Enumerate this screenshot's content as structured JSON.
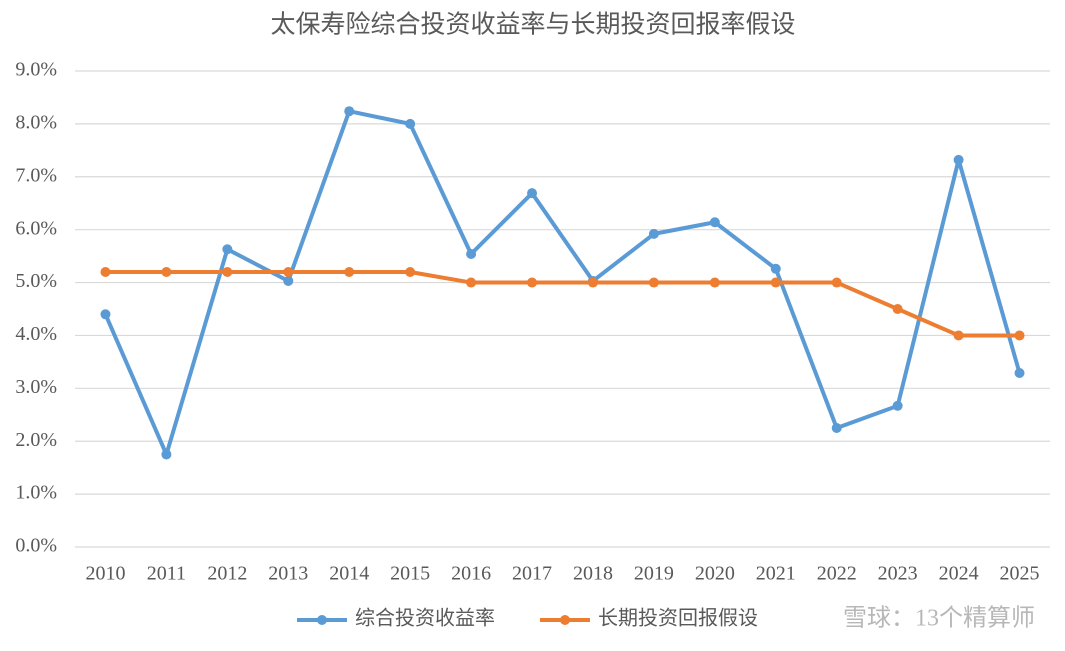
{
  "chart_data": {
    "type": "line",
    "title": "太保寿险综合投资收益率与长期投资回报率假设",
    "categories": [
      "2010",
      "2011",
      "2012",
      "2013",
      "2014",
      "2015",
      "2016",
      "2017",
      "2018",
      "2019",
      "2020",
      "2021",
      "2022",
      "2023",
      "2024",
      "2025"
    ],
    "series": [
      {
        "name": "综合投资收益率",
        "color": "#5b9bd5",
        "values": [
          4.4,
          1.75,
          5.63,
          5.03,
          8.24,
          8.0,
          5.54,
          6.69,
          5.03,
          5.92,
          6.14,
          5.26,
          2.25,
          2.67,
          7.32,
          3.29
        ]
      },
      {
        "name": "长期投资回报假设",
        "color": "#ed7d31",
        "values": [
          5.2,
          5.2,
          5.2,
          5.2,
          5.2,
          5.2,
          5.0,
          5.0,
          5.0,
          5.0,
          5.0,
          5.0,
          5.0,
          4.5,
          4.0,
          4.0
        ]
      }
    ],
    "ylim": [
      0,
      9
    ],
    "yticks": [
      {
        "value": 0,
        "label": "0.0%"
      },
      {
        "value": 1,
        "label": "1.0%"
      },
      {
        "value": 2,
        "label": "2.0%"
      },
      {
        "value": 3,
        "label": "3.0%"
      },
      {
        "value": 4,
        "label": "4.0%"
      },
      {
        "value": 5,
        "label": "5.0%"
      },
      {
        "value": 6,
        "label": "6.0%"
      },
      {
        "value": 7,
        "label": "7.0%"
      },
      {
        "value": 8,
        "label": "8.0%"
      },
      {
        "value": 9,
        "label": "9.0%"
      }
    ],
    "grid": true,
    "legend": "bottom",
    "watermark": "雪球：13个精算师"
  }
}
